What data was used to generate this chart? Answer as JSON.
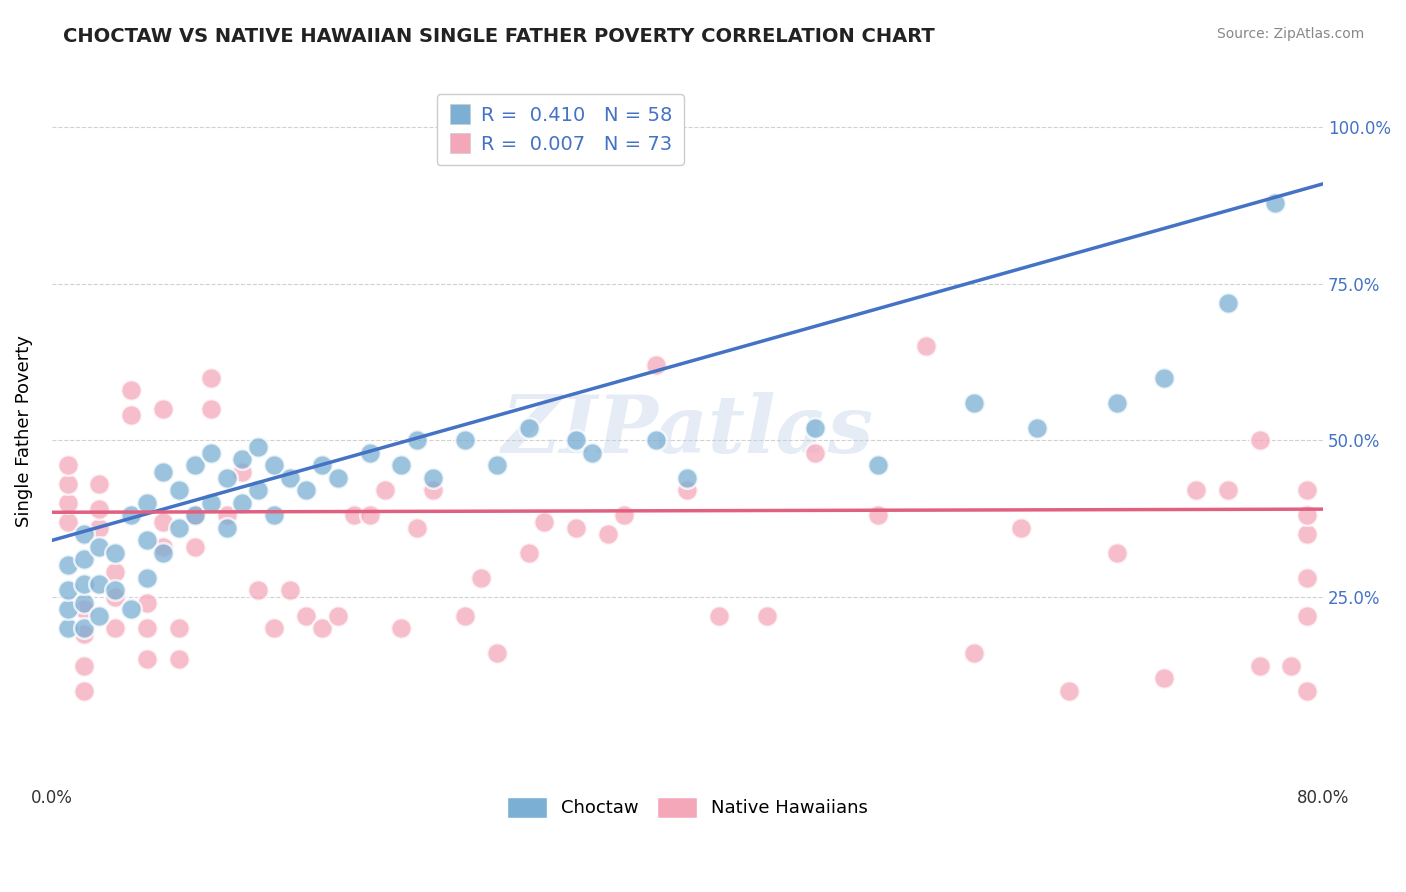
{
  "title": "CHOCTAW VS NATIVE HAWAIIAN SINGLE FATHER POVERTY CORRELATION CHART",
  "source": "Source: ZipAtlas.com",
  "ylabel": "Single Father Poverty",
  "legend_choctaw": "R =  0.410   N = 58",
  "legend_native": "R =  0.007   N = 73",
  "legend_label_choctaw": "Choctaw",
  "legend_label_native": "Native Hawaiians",
  "choctaw_color": "#7BAFD4",
  "native_color": "#F4A7B9",
  "choctaw_line_color": "#4472C4",
  "native_line_color": "#E06080",
  "xlim": [
    0.0,
    0.8
  ],
  "ylim": [
    -0.05,
    1.08
  ],
  "ytick_positions": [
    0.25,
    0.5,
    0.75,
    1.0
  ],
  "ytick_labels": [
    "25.0%",
    "50.0%",
    "75.0%",
    "100.0%"
  ],
  "background_color": "#FFFFFF",
  "grid_color": "#CCCCCC",
  "watermark": "ZIPatlas",
  "choctaw_line_x0": 0.0,
  "choctaw_line_y0": 0.34,
  "choctaw_line_x1": 0.8,
  "choctaw_line_y1": 0.91,
  "native_line_x0": 0.0,
  "native_line_y0": 0.385,
  "native_line_x1": 0.8,
  "native_line_y1": 0.39,
  "choctaw_x": [
    0.01,
    0.01,
    0.01,
    0.01,
    0.02,
    0.02,
    0.02,
    0.02,
    0.02,
    0.03,
    0.03,
    0.03,
    0.04,
    0.04,
    0.05,
    0.05,
    0.06,
    0.06,
    0.06,
    0.07,
    0.07,
    0.08,
    0.08,
    0.09,
    0.09,
    0.1,
    0.1,
    0.11,
    0.11,
    0.12,
    0.12,
    0.13,
    0.13,
    0.14,
    0.14,
    0.15,
    0.16,
    0.17,
    0.18,
    0.2,
    0.22,
    0.23,
    0.24,
    0.26,
    0.28,
    0.3,
    0.33,
    0.34,
    0.38,
    0.4,
    0.48,
    0.52,
    0.58,
    0.62,
    0.67,
    0.7,
    0.74,
    0.77
  ],
  "choctaw_y": [
    0.2,
    0.23,
    0.26,
    0.3,
    0.2,
    0.24,
    0.27,
    0.31,
    0.35,
    0.22,
    0.27,
    0.33,
    0.26,
    0.32,
    0.23,
    0.38,
    0.28,
    0.34,
    0.4,
    0.32,
    0.45,
    0.36,
    0.42,
    0.38,
    0.46,
    0.4,
    0.48,
    0.36,
    0.44,
    0.4,
    0.47,
    0.42,
    0.49,
    0.38,
    0.46,
    0.44,
    0.42,
    0.46,
    0.44,
    0.48,
    0.46,
    0.5,
    0.44,
    0.5,
    0.46,
    0.52,
    0.5,
    0.48,
    0.5,
    0.44,
    0.52,
    0.46,
    0.56,
    0.52,
    0.56,
    0.6,
    0.72,
    0.88
  ],
  "native_x": [
    0.01,
    0.01,
    0.01,
    0.01,
    0.02,
    0.02,
    0.02,
    0.02,
    0.03,
    0.03,
    0.03,
    0.04,
    0.04,
    0.04,
    0.05,
    0.05,
    0.06,
    0.06,
    0.06,
    0.07,
    0.07,
    0.07,
    0.08,
    0.08,
    0.09,
    0.09,
    0.1,
    0.1,
    0.11,
    0.12,
    0.13,
    0.14,
    0.15,
    0.16,
    0.17,
    0.18,
    0.19,
    0.2,
    0.21,
    0.22,
    0.23,
    0.24,
    0.26,
    0.27,
    0.28,
    0.3,
    0.31,
    0.33,
    0.35,
    0.36,
    0.38,
    0.4,
    0.42,
    0.45,
    0.48,
    0.52,
    0.55,
    0.58,
    0.61,
    0.64,
    0.67,
    0.7,
    0.72,
    0.74,
    0.76,
    0.76,
    0.78,
    0.79,
    0.79,
    0.79,
    0.79,
    0.79,
    0.79
  ],
  "native_y": [
    0.37,
    0.4,
    0.43,
    0.46,
    0.1,
    0.14,
    0.19,
    0.23,
    0.36,
    0.39,
    0.43,
    0.2,
    0.25,
    0.29,
    0.54,
    0.58,
    0.15,
    0.2,
    0.24,
    0.33,
    0.37,
    0.55,
    0.15,
    0.2,
    0.33,
    0.38,
    0.55,
    0.6,
    0.38,
    0.45,
    0.26,
    0.2,
    0.26,
    0.22,
    0.2,
    0.22,
    0.38,
    0.38,
    0.42,
    0.2,
    0.36,
    0.42,
    0.22,
    0.28,
    0.16,
    0.32,
    0.37,
    0.36,
    0.35,
    0.38,
    0.62,
    0.42,
    0.22,
    0.22,
    0.48,
    0.38,
    0.65,
    0.16,
    0.36,
    0.1,
    0.32,
    0.12,
    0.42,
    0.42,
    0.14,
    0.5,
    0.14,
    0.22,
    0.28,
    0.35,
    0.38,
    0.42,
    0.1
  ]
}
